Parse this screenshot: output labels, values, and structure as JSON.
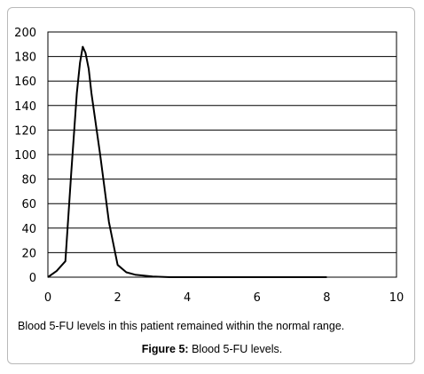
{
  "chart_data": {
    "type": "line",
    "title": "",
    "xlabel": "",
    "ylabel": "",
    "xlim": [
      0,
      10
    ],
    "ylim": [
      0,
      200
    ],
    "x_ticks": [
      0,
      2,
      4,
      6,
      8,
      10
    ],
    "y_ticks": [
      0,
      20,
      40,
      60,
      80,
      100,
      120,
      140,
      160,
      180,
      200
    ],
    "grid": "horizontal",
    "legend": "none",
    "series": [
      {
        "color": "#000000",
        "x": [
          0,
          0.25,
          0.5,
          0.67,
          0.83,
          0.92,
          1.0,
          1.08,
          1.17,
          1.25,
          1.5,
          1.75,
          2.0,
          2.25,
          2.5,
          3.0,
          3.5,
          4.0,
          5.0,
          6.0,
          7.0,
          8.0
        ],
        "y": [
          0,
          5,
          13,
          85,
          150,
          175,
          188,
          183,
          170,
          150,
          100,
          45,
          10,
          4,
          2,
          0.5,
          0,
          0,
          0,
          0,
          0,
          0
        ]
      }
    ]
  },
  "caption": "Blood 5-FU levels in this patient remained within the normal range.",
  "figure": {
    "label": "Figure 5:",
    "text": "Blood 5-FU levels."
  }
}
